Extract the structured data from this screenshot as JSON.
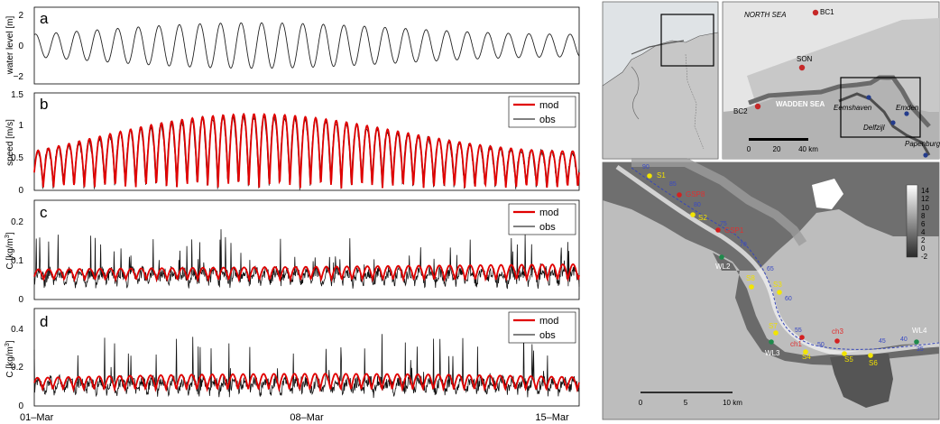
{
  "timeseries": {
    "x_ticks": [
      "01–Mar",
      "08–Mar",
      "15–Mar"
    ],
    "legend_mod": "mod",
    "legend_obs": "obs",
    "colors": {
      "mod": "#e00000",
      "obs": "#000000"
    },
    "panels": [
      {
        "letter": "a",
        "ylabel": "water level [m]",
        "yticks": [
          "2",
          "0",
          "−2"
        ],
        "ylim": [
          -2.5,
          2.5
        ],
        "legend": false
      },
      {
        "letter": "b",
        "ylabel": "speed [m/s]",
        "yticks": [
          "1.5",
          "1",
          "0.5",
          "0"
        ],
        "ylim": [
          0,
          1.5
        ],
        "legend": true
      },
      {
        "letter": "c",
        "ylabel_main": "C [kg/m",
        "ylabel_sup": "3",
        "ylabel_end": "]",
        "yticks": [
          "0.2",
          "0.1",
          "0"
        ],
        "ylim": [
          0,
          0.25
        ],
        "legend": true
      },
      {
        "letter": "d",
        "ylabel_main": "C [kg/m",
        "ylabel_sup": "3",
        "ylabel_end": "]",
        "yticks": [
          "0.4",
          "0.2",
          "0"
        ],
        "ylim": [
          0,
          0.5
        ],
        "legend": true
      }
    ]
  },
  "overview_map": {
    "labels": {
      "north_sea": "NORTH SEA",
      "wadden_sea": "WADDEN SEA",
      "bc1": "BC1",
      "bc2": "BC2",
      "son": "SON",
      "eemshaven": "Eemshaven",
      "emden": "Emden",
      "delfzijl": "Delfzijl",
      "papenburg": "Papenburg"
    },
    "scalebar": [
      "0",
      "20",
      "40 km"
    ]
  },
  "detail_map": {
    "stations_yellow": [
      "S1",
      "S2",
      "S3",
      "S4",
      "S5",
      "S6",
      "S7",
      "S8"
    ],
    "stations_red": [
      "GSP8",
      "GSP1",
      "ch3",
      "ch1"
    ],
    "stations_water": [
      "WL2",
      "WL3",
      "WL4"
    ],
    "km_marks": [
      "90",
      "85",
      "80",
      "75",
      "70",
      "65",
      "60",
      "55",
      "50",
      "45",
      "40",
      "35"
    ],
    "colorbar_ticks": [
      "14",
      "12",
      "10",
      "8",
      "6",
      "4",
      "2",
      "0",
      "-2"
    ],
    "scalebar": [
      "0",
      "5",
      "10 km"
    ]
  }
}
